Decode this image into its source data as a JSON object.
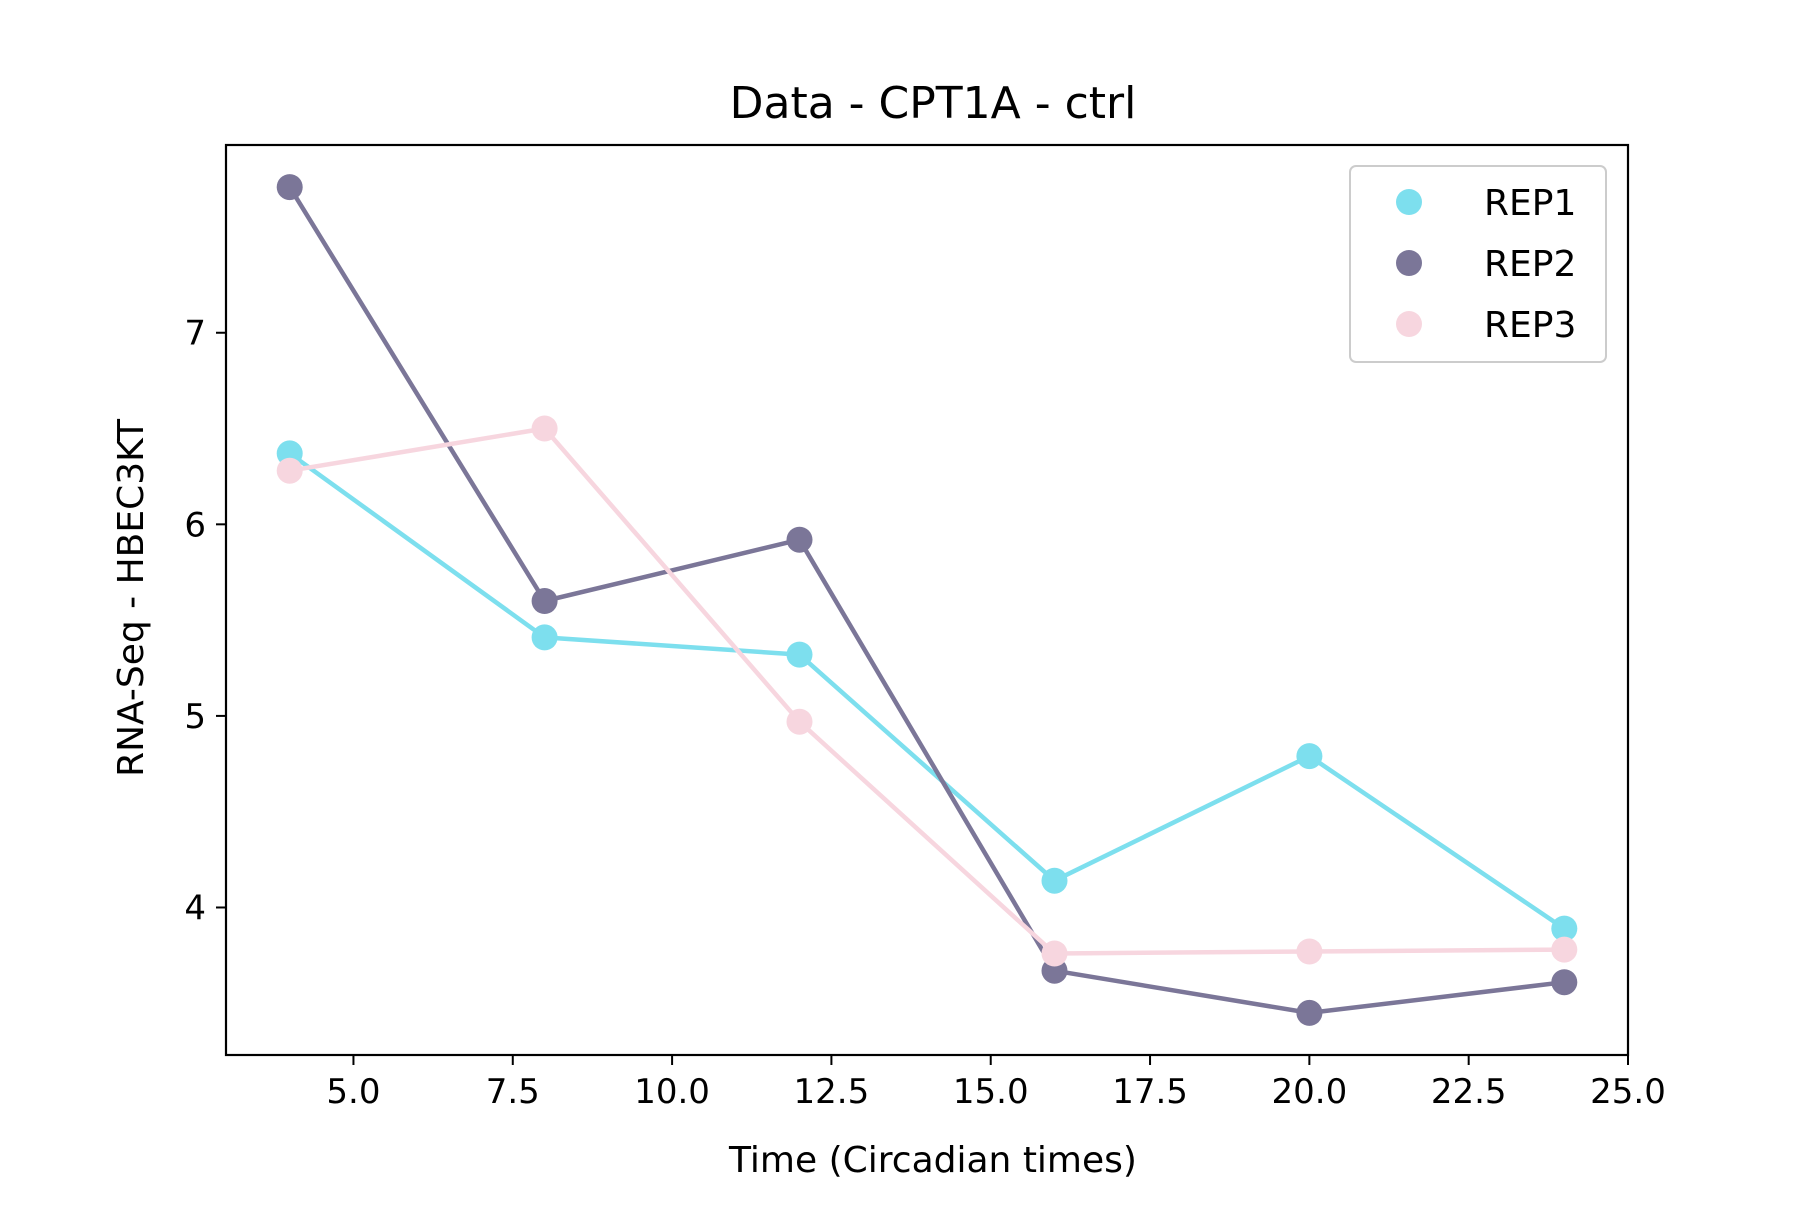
{
  "chart_data": {
    "type": "line",
    "title": "Data - CPT1A - ctrl",
    "xlabel": "Time (Circadian times)",
    "ylabel": "RNA-Seq - HBEC3KT",
    "xlim": [
      3.0,
      25.0
    ],
    "ylim": [
      3.23,
      7.98
    ],
    "xticks": [
      5.0,
      7.5,
      10.0,
      12.5,
      15.0,
      17.5,
      20.0,
      22.5,
      25.0
    ],
    "xtick_labels": [
      "5.0",
      "7.5",
      "10.0",
      "12.5",
      "15.0",
      "17.5",
      "20.0",
      "22.5",
      "25.0"
    ],
    "yticks": [
      4,
      5,
      6,
      7
    ],
    "ytick_labels": [
      "4",
      "5",
      "6",
      "7"
    ],
    "grid": false,
    "legend_position": "top-right",
    "x": [
      4,
      8,
      12,
      16,
      20,
      24
    ],
    "series": [
      {
        "name": "REP1",
        "color": "#7ddfee",
        "values": [
          6.37,
          5.41,
          5.32,
          4.14,
          4.79,
          3.89
        ]
      },
      {
        "name": "REP2",
        "color": "#7b7698",
        "values": [
          7.76,
          5.6,
          5.92,
          3.67,
          3.45,
          3.61
        ]
      },
      {
        "name": "REP3",
        "color": "#f7d6df",
        "values": [
          6.28,
          6.5,
          4.97,
          3.76,
          3.77,
          3.78
        ]
      }
    ]
  }
}
